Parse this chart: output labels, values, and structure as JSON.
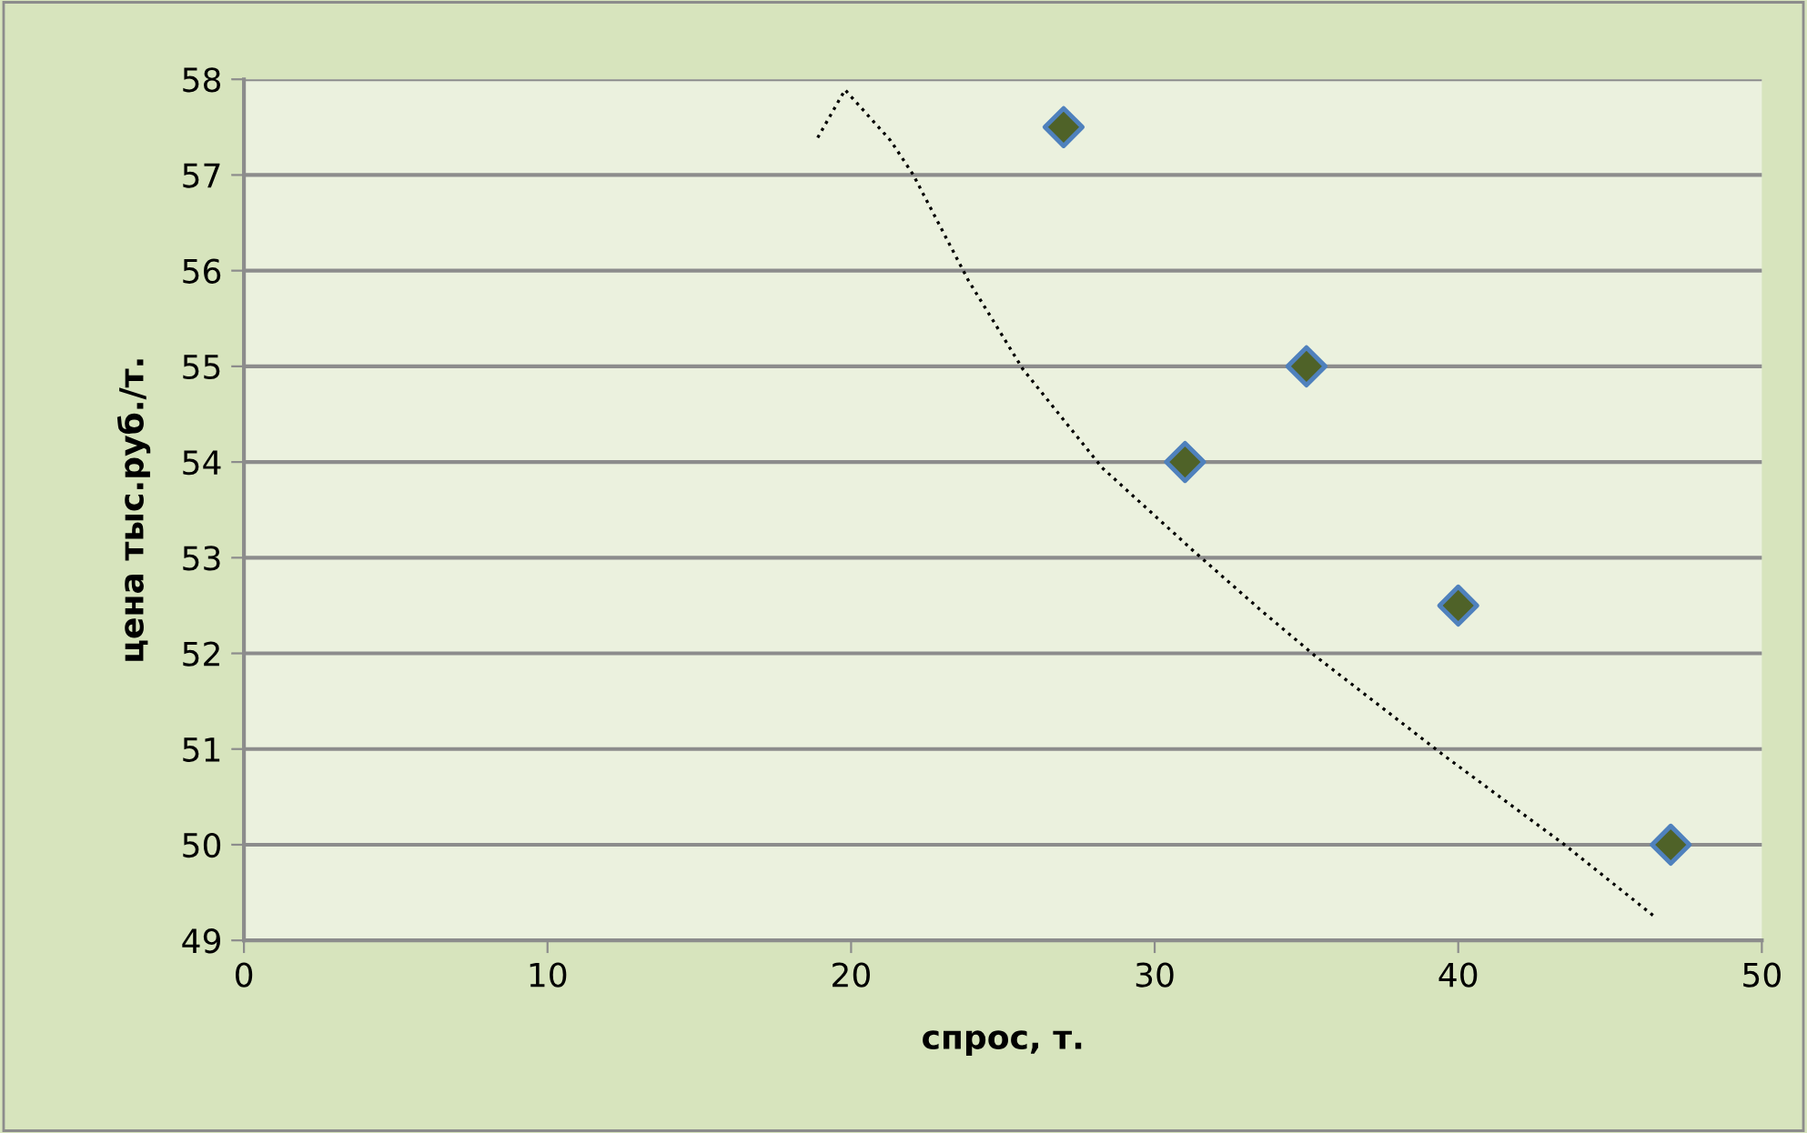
{
  "chart_data": {
    "type": "scatter",
    "xlabel": "спрос, т.",
    "ylabel": "цена тыс.руб./т.",
    "xlim": [
      0,
      50
    ],
    "xticks": [
      0,
      10,
      20,
      30,
      40,
      50
    ],
    "ylim": [
      49,
      58
    ],
    "yticks": [
      49,
      50,
      51,
      52,
      53,
      54,
      55,
      56,
      57,
      58
    ],
    "grid": "y",
    "legend": false,
    "series": [
      {
        "color": "#4f6228",
        "marker": "diamond",
        "x": [
          27,
          31,
          35,
          40,
          47
        ],
        "values": [
          57.5,
          54,
          55,
          52.5,
          50
        ]
      },
      {
        "type": "line",
        "color": "#000000",
        "marker": "none",
        "line_style": "dotted",
        "x": [
          18.9,
          19.8,
          21.3,
          22.05,
          23.86,
          25.66,
          28.27,
          31.28,
          33.5,
          35.3,
          39.5,
          43.5,
          46.5
        ],
        "values": [
          57.39,
          57.89,
          57.36,
          57.0,
          55.9,
          54.97,
          53.94,
          53.07,
          52.45,
          51.97,
          50.94,
          50.0,
          49.24
        ]
      }
    ]
  }
}
